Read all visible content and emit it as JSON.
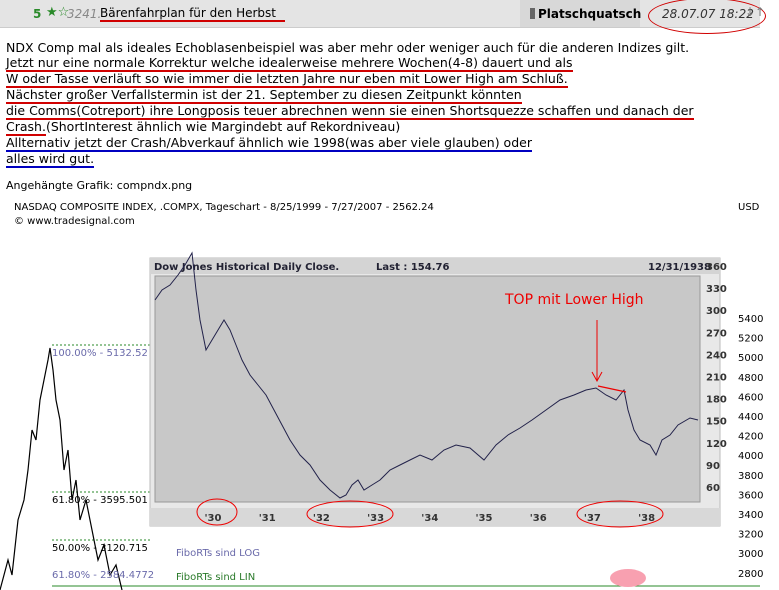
{
  "header": {
    "rating": "5",
    "number": "3241.",
    "title": "Bärenfahrplan für den Herbst",
    "author": "Platschquatsch",
    "date": "28.07.07 18:22",
    "arrows": "↓↑"
  },
  "body": [
    "NDX Comp mal als ideales Echoblasenbeispiel was aber mehr oder weniger auch für die anderen Indizes gilt.",
    "Jetzt nur eine normale Korrektur welche idealerweise mehrere Wochen(4-8) dauert und als",
    "W oder Tasse verläuft so wie immer die letzten Jahre nur eben mit Lower High am Schluß.",
    "Nächster großer Verfallstermin ist der 21. September zu diesen Zeitpunkt könnten",
    "die Comms(Cotreport) ihre Longposis teuer abrechnen wenn sie einen Shortsquezze schaffen und danach der",
    [
      "Crash.",
      "(ShortInterest ähnlich wie Margindebt auf Rekordniveau)"
    ],
    "Allternativ jetzt der Crash/Abverkauf ähnlich wie 1998(was aber viele glauben) oder",
    "alles wird gut."
  ],
  "attachment": {
    "label": "Angehängte Grafik: compndx.png",
    "image": {
      "header": "NASDAQ COMPOSITE INDEX, .COMPX, Tageschart - 8/25/1999 - 7/27/2007 - 2562.24",
      "copyright": "© www.tradesignal.com",
      "currency": "USD",
      "yticks": [
        "5400",
        "5200",
        "5000",
        "4800",
        "4600",
        "4400",
        "4200",
        "4000",
        "3800",
        "3600",
        "3400",
        "3200",
        "3000",
        "2800"
      ],
      "fibo": [
        "100.00% - 5132.52",
        "61.80% - 3595.501",
        "50.00% - 3120.715",
        "61.80% - 2584.4772"
      ],
      "notes": [
        "FiboRTs sind LOG",
        "FiboRTs sind LIN"
      ],
      "dow": {
        "title": "Dow Jones Historical Daily Close.",
        "last": "Last : 154.76",
        "date": "12/31/1938",
        "annotation": "TOP mit Lower High",
        "yticks": [
          "360",
          "330",
          "300",
          "270",
          "240",
          "210",
          "180",
          "150",
          "120",
          "90",
          "60"
        ],
        "xticks": [
          "'30",
          "'31",
          "'32",
          "'33",
          "'34",
          "'35",
          "'36",
          "'37",
          "'38"
        ]
      }
    }
  }
}
